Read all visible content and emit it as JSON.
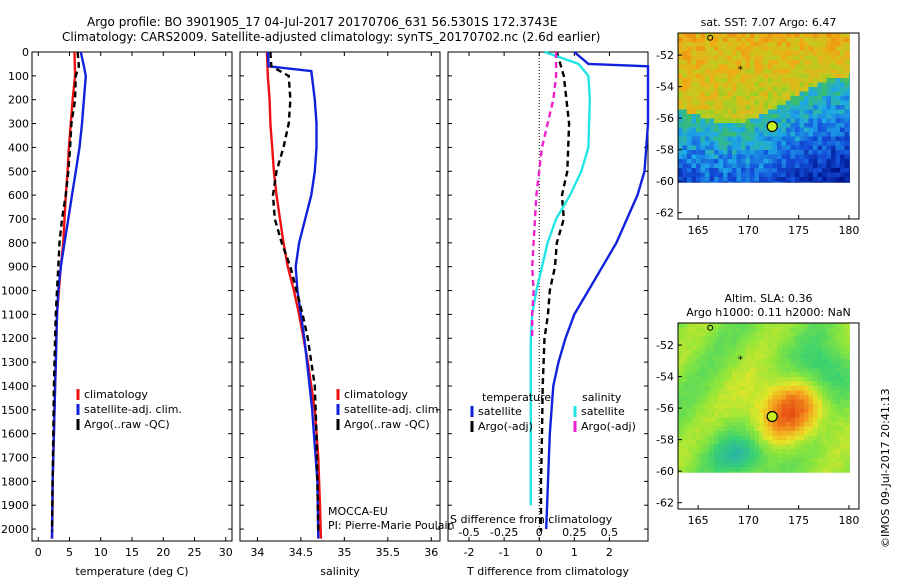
{
  "header": {
    "line1": "Argo profile: BO 3901905_17 04-Jul-2017 20170706_631 56.5301S 172.3743E",
    "line2": "Climatology: CARS2009. Satellite-adjusted climatology: synTS_20170702.nc (2.6d earlier)"
  },
  "colors": {
    "climatology": "#ee1111",
    "satellite": "#1122dd",
    "argo": "#000000",
    "argo_s": "#ee22cc",
    "sat_s": "#22e5e5"
  },
  "annotations": {
    "mocca": "MOCCA-EU",
    "pi": "PI: Pierre-Marie Poulain",
    "imos": "©IMOS 09-Jul-2017 20:41:13"
  },
  "chart_data": [
    {
      "id": "temperature",
      "type": "line",
      "xlabel": "temperature (deg C)",
      "ylabel": "",
      "xlim": [
        -1,
        31
      ],
      "ylim": [
        2050,
        0
      ],
      "xticks": [
        0,
        5,
        10,
        15,
        20,
        25,
        30
      ],
      "yticks": [
        0,
        100,
        200,
        300,
        400,
        500,
        600,
        700,
        800,
        900,
        1000,
        1100,
        1200,
        1300,
        1400,
        1500,
        1600,
        1700,
        1800,
        1900,
        2000
      ],
      "legend": [
        "climatology",
        "satellite-adj. clim.",
        "Argo(..raw -QC)"
      ],
      "series": [
        {
          "name": "climatology",
          "color": "#ee1111",
          "dash": "",
          "x": [
            5.8,
            5.9,
            5.5,
            5.2,
            4.9,
            4.7,
            4.4,
            4.2,
            4.0,
            3.6,
            3.3,
            3.0,
            2.9,
            2.8,
            2.7,
            2.6,
            2.5,
            2.4,
            2.3,
            2.3,
            2.2
          ],
          "y": [
            0,
            100,
            200,
            300,
            400,
            500,
            600,
            700,
            800,
            900,
            1000,
            1100,
            1200,
            1300,
            1400,
            1500,
            1600,
            1700,
            1800,
            1900,
            2040
          ]
        },
        {
          "name": "satellite-adj. clim.",
          "color": "#1122dd",
          "dash": "",
          "x": [
            6.8,
            7.3,
            7.6,
            7.3,
            7.0,
            6.6,
            6.0,
            5.4,
            4.8,
            4.2,
            3.6,
            3.2,
            3.0,
            2.9,
            2.8,
            2.7,
            2.6,
            2.5,
            2.4,
            2.3,
            2.2
          ],
          "y": [
            0,
            60,
            100,
            200,
            300,
            400,
            500,
            600,
            700,
            800,
            900,
            1000,
            1100,
            1200,
            1300,
            1400,
            1500,
            1600,
            1700,
            1800,
            2040
          ]
        },
        {
          "name": "Argo(..raw -QC)",
          "color": "#000000",
          "dash": "6,4",
          "x": [
            6.3,
            6.5,
            6.0,
            5.9,
            5.3,
            5.1,
            4.8,
            4.4,
            3.8,
            3.4,
            3.2,
            3.0,
            2.8,
            2.7,
            2.5,
            2.4,
            2.3,
            2.2
          ],
          "y": [
            0,
            60,
            100,
            200,
            300,
            400,
            500,
            600,
            700,
            800,
            900,
            1000,
            1100,
            1200,
            1400,
            1600,
            1800,
            2010
          ]
        }
      ]
    },
    {
      "id": "salinity",
      "type": "line",
      "xlabel": "salinity",
      "ylabel": "",
      "xlim": [
        33.8,
        36.1
      ],
      "ylim": [
        2050,
        0
      ],
      "xticks": [
        34,
        34.5,
        35,
        35.5,
        36
      ],
      "legend": [
        "climatology",
        "satellite-adj. clim.",
        "Argo(..raw -QC)"
      ],
      "series": [
        {
          "name": "climatology",
          "color": "#ee1111",
          "dash": "",
          "x": [
            34.11,
            34.12,
            34.14,
            34.15,
            34.17,
            34.19,
            34.22,
            34.26,
            34.3,
            34.35,
            34.42,
            34.48,
            34.53,
            34.58,
            34.62,
            34.66,
            34.68,
            34.7,
            34.71,
            34.72,
            34.73
          ],
          "y": [
            0,
            100,
            200,
            300,
            400,
            500,
            600,
            700,
            800,
            900,
            1000,
            1100,
            1200,
            1300,
            1400,
            1500,
            1600,
            1700,
            1800,
            1900,
            2040
          ]
        },
        {
          "name": "satellite-adj. clim.",
          "color": "#1122dd",
          "dash": "",
          "x": [
            34.12,
            34.13,
            34.62,
            34.66,
            34.68,
            34.68,
            34.66,
            34.62,
            34.55,
            34.48,
            34.44,
            34.46,
            34.5,
            34.54,
            34.57,
            34.6,
            34.63,
            34.65,
            34.67,
            34.69,
            34.7
          ],
          "y": [
            0,
            60,
            80,
            200,
            300,
            400,
            500,
            600,
            700,
            800,
            900,
            1000,
            1100,
            1200,
            1300,
            1400,
            1500,
            1600,
            1700,
            1800,
            2040
          ]
        },
        {
          "name": "Argo(..raw -QC)",
          "color": "#000000",
          "dash": "6,4",
          "x": [
            34.15,
            34.16,
            34.36,
            34.38,
            34.36,
            34.3,
            34.22,
            34.18,
            34.2,
            34.28,
            34.38,
            34.45,
            34.52,
            34.58,
            34.62,
            34.66,
            34.68,
            34.69,
            34.7
          ],
          "y": [
            0,
            60,
            100,
            200,
            300,
            400,
            500,
            600,
            700,
            800,
            900,
            1000,
            1100,
            1200,
            1300,
            1400,
            1600,
            1800,
            2010
          ]
        }
      ]
    },
    {
      "id": "difference",
      "type": "line",
      "xlabel": "T difference from climatology",
      "xlabel2": "S difference from climatology",
      "ylabel": "",
      "xlim": [
        -2.6,
        3.1
      ],
      "ylim": [
        2050,
        0
      ],
      "xticks": [
        -2,
        -1,
        0,
        1,
        2
      ],
      "xticks2": [
        "-0.5",
        "-0.25",
        "0",
        "0.25",
        "0.5"
      ],
      "legend_headers": [
        "temperature",
        "salinity"
      ],
      "legend": [
        "satellite",
        "Argo(-adj)",
        "satellite",
        "Argo(-adj)"
      ],
      "series": [
        {
          "name": "satellite",
          "color": "#1122dd",
          "dash": "",
          "x": [
            1.0,
            1.4,
            3.1,
            3.1,
            3.0,
            2.8,
            2.5,
            2.2,
            1.8,
            1.4,
            1.0,
            0.75,
            0.55,
            0.4,
            0.3,
            0.25,
            0.2
          ],
          "y": [
            0,
            50,
            60,
            300,
            500,
            600,
            700,
            800,
            900,
            1000,
            1100,
            1200,
            1300,
            1400,
            1600,
            1800,
            2000
          ]
        },
        {
          "name": "Argo(-adj)",
          "color": "#000000",
          "dash": "6,4",
          "x": [
            0.5,
            0.7,
            0.85,
            0.8,
            0.65,
            0.7,
            0.5,
            0.45,
            0.3,
            0.25,
            0.15,
            0.1,
            0.08,
            0.05,
            0.05
          ],
          "y": [
            0,
            100,
            300,
            500,
            600,
            700,
            800,
            900,
            1000,
            1100,
            1200,
            1400,
            1600,
            1800,
            2010
          ]
        },
        {
          "name": "satellite",
          "color": "#22e5e5",
          "dash": "",
          "x": [
            0.04,
            0.28,
            0.35,
            0.36,
            0.35,
            0.3,
            0.22,
            0.12,
            0.06,
            0.02,
            -0.02,
            -0.05,
            -0.06,
            -0.06,
            -0.06,
            -0.06
          ],
          "y": [
            0,
            50,
            100,
            200,
            400,
            500,
            600,
            700,
            800,
            900,
            1000,
            1100,
            1200,
            1400,
            1700,
            1900
          ]
        },
        {
          "name": "Argo(-adj)",
          "color": "#ee22cc",
          "dash": "6,4",
          "x": [
            0.12,
            0.12,
            0.1,
            0.06,
            0.02,
            0.0,
            -0.02,
            -0.03,
            -0.04,
            -0.05,
            -0.04,
            -0.05,
            -0.05
          ],
          "y": [
            0,
            100,
            200,
            300,
            400,
            500,
            600,
            700,
            800,
            900,
            1000,
            1100,
            1200
          ]
        }
      ]
    },
    {
      "id": "sst_map",
      "type": "heatmap",
      "title": "sat. SST: 7.07 Argo: 6.47",
      "xlim": [
        163,
        181
      ],
      "ylim": [
        -62.4,
        -50.6
      ],
      "xticks": [
        165,
        170,
        175,
        180
      ],
      "yticks": [
        -52,
        -54,
        -56,
        -58,
        -60,
        -62
      ],
      "float_position": [
        172.37,
        -56.53
      ]
    },
    {
      "id": "sla_map",
      "type": "heatmap",
      "title": "Altim. SLA: 0.36",
      "subtitle": "Argo h1000: 0.11 h2000: NaN",
      "xlim": [
        163,
        181
      ],
      "ylim": [
        -62.4,
        -50.6
      ],
      "xticks": [
        165,
        170,
        175,
        180
      ],
      "yticks": [
        -52,
        -54,
        -56,
        -58,
        -60,
        -62
      ],
      "float_position": [
        172.37,
        -56.53
      ]
    }
  ]
}
